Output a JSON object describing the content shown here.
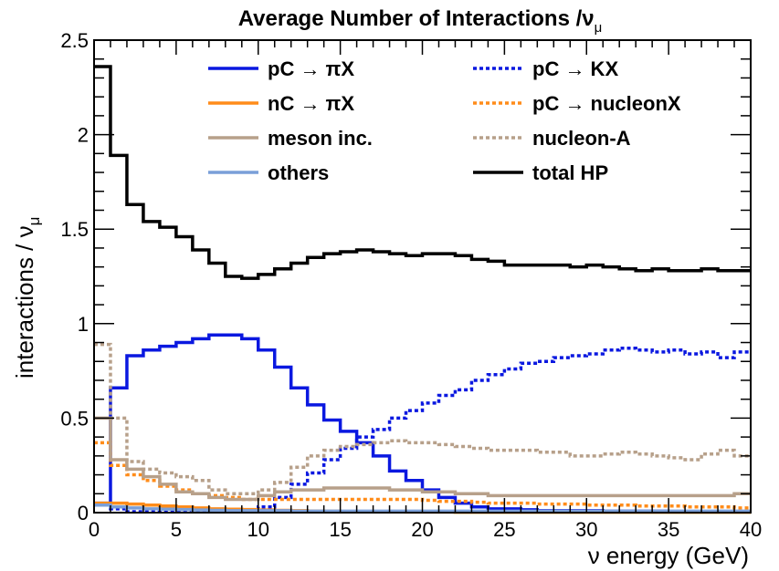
{
  "chart_data": {
    "type": "line",
    "title": "Average Number of Interactions /ν",
    "title_sub": "μ",
    "xlabel": "ν energy (GeV)",
    "ylabel": "interactions / ν",
    "ylabel_sub": "μ",
    "xlim": [
      0,
      40
    ],
    "ylim": [
      0,
      2.5
    ],
    "xticks": [
      0,
      5,
      10,
      15,
      20,
      25,
      30,
      35,
      40
    ],
    "yticks": [
      0,
      0.5,
      1,
      1.5,
      2,
      2.5
    ],
    "ytick_labels": [
      "0",
      "0.5",
      "1",
      "1.5",
      "2",
      "2.5"
    ],
    "bin_edges": [
      0,
      1,
      2,
      3,
      4,
      5,
      6,
      7,
      8,
      9,
      10,
      11,
      12,
      13,
      14,
      15,
      16,
      17,
      18,
      19,
      20,
      21,
      22,
      23,
      24,
      25,
      26,
      27,
      28,
      29,
      30,
      31,
      32,
      33,
      34,
      35,
      36,
      37,
      38,
      39,
      40
    ],
    "legend_position": "top",
    "series": [
      {
        "name": "pC → πX",
        "color": "#0a18e0",
        "style": "solid",
        "values": [
          0.05,
          0.66,
          0.83,
          0.86,
          0.88,
          0.9,
          0.92,
          0.94,
          0.94,
          0.92,
          0.86,
          0.77,
          0.66,
          0.57,
          0.49,
          0.43,
          0.37,
          0.3,
          0.22,
          0.17,
          0.12,
          0.08,
          0.05,
          0.03,
          0.02,
          0.02,
          0.015,
          0.01,
          0.01,
          0.01,
          0.01,
          0.008,
          0.008,
          0.008,
          0.008,
          0.006,
          0.006,
          0.006,
          0.005,
          0.005
        ]
      },
      {
        "name": "pC → KX",
        "color": "#0a18e0",
        "style": "dotted",
        "values": [
          0.04,
          0.02,
          0.005,
          0.005,
          0.005,
          0.005,
          0.005,
          0.005,
          0.005,
          0.01,
          0.03,
          0.08,
          0.15,
          0.21,
          0.28,
          0.34,
          0.4,
          0.44,
          0.5,
          0.54,
          0.58,
          0.62,
          0.65,
          0.7,
          0.73,
          0.76,
          0.79,
          0.8,
          0.82,
          0.83,
          0.84,
          0.86,
          0.87,
          0.86,
          0.85,
          0.86,
          0.84,
          0.85,
          0.82,
          0.85
        ]
      },
      {
        "name": "nC → πX",
        "color": "#ff8c1a",
        "style": "solid",
        "values": [
          0.05,
          0.05,
          0.045,
          0.04,
          0.035,
          0.03,
          0.025,
          0.02,
          0.018,
          0.016,
          0.014,
          0.012,
          0.01,
          0.008,
          0.007,
          0.006,
          0.005,
          0.004,
          0.004,
          0.003,
          0.003,
          0.003,
          0.002,
          0.002,
          0.002,
          0.002,
          0.002,
          0.002,
          0.002,
          0.002,
          0.002,
          0.002,
          0.002,
          0.002,
          0.002,
          0.002,
          0.002,
          0.002,
          0.002,
          0.002
        ]
      },
      {
        "name": "pC → nucleonX",
        "color": "#ff8c1a",
        "style": "dotted",
        "values": [
          0.37,
          0.25,
          0.2,
          0.17,
          0.14,
          0.12,
          0.1,
          0.09,
          0.08,
          0.07,
          0.07,
          0.07,
          0.07,
          0.07,
          0.07,
          0.07,
          0.07,
          0.07,
          0.07,
          0.07,
          0.065,
          0.06,
          0.06,
          0.055,
          0.05,
          0.05,
          0.05,
          0.045,
          0.045,
          0.045,
          0.04,
          0.04,
          0.04,
          0.035,
          0.035,
          0.035,
          0.03,
          0.03,
          0.03,
          0.025
        ]
      },
      {
        "name": "meson inc.",
        "color": "#b7a08a",
        "style": "solid",
        "values": [
          0.5,
          0.28,
          0.23,
          0.19,
          0.15,
          0.11,
          0.1,
          0.08,
          0.07,
          0.07,
          0.09,
          0.11,
          0.12,
          0.12,
          0.13,
          0.13,
          0.13,
          0.13,
          0.12,
          0.12,
          0.11,
          0.11,
          0.1,
          0.1,
          0.09,
          0.09,
          0.09,
          0.09,
          0.09,
          0.09,
          0.09,
          0.09,
          0.09,
          0.09,
          0.09,
          0.09,
          0.09,
          0.09,
          0.09,
          0.1
        ]
      },
      {
        "name": "nucleon-A",
        "color": "#b7a08a",
        "style": "dotted",
        "values": [
          0.89,
          0.5,
          0.27,
          0.23,
          0.21,
          0.19,
          0.17,
          0.12,
          0.1,
          0.1,
          0.12,
          0.16,
          0.24,
          0.3,
          0.33,
          0.35,
          0.36,
          0.37,
          0.38,
          0.37,
          0.37,
          0.36,
          0.35,
          0.34,
          0.33,
          0.33,
          0.33,
          0.32,
          0.32,
          0.3,
          0.3,
          0.31,
          0.32,
          0.31,
          0.3,
          0.29,
          0.28,
          0.31,
          0.33,
          0.3
        ]
      },
      {
        "name": "others",
        "color": "#7a9fd8",
        "style": "solid",
        "values": [
          0.04,
          0.03,
          0.025,
          0.02,
          0.018,
          0.016,
          0.014,
          0.012,
          0.01,
          0.01,
          0.01,
          0.01,
          0.008,
          0.008,
          0.008,
          0.008,
          0.008,
          0.008,
          0.008,
          0.008,
          0.008,
          0.008,
          0.008,
          0.008,
          0.008,
          0.008,
          0.008,
          0.008,
          0.008,
          0.008,
          0.008,
          0.008,
          0.008,
          0.008,
          0.008,
          0.008,
          0.008,
          0.008,
          0.008,
          0.008
        ]
      },
      {
        "name": "total HP",
        "color": "#000000",
        "style": "solid",
        "values": [
          2.36,
          1.89,
          1.63,
          1.54,
          1.51,
          1.46,
          1.39,
          1.32,
          1.25,
          1.24,
          1.26,
          1.29,
          1.32,
          1.35,
          1.37,
          1.38,
          1.39,
          1.38,
          1.37,
          1.36,
          1.37,
          1.37,
          1.36,
          1.34,
          1.33,
          1.31,
          1.31,
          1.31,
          1.31,
          1.3,
          1.31,
          1.3,
          1.29,
          1.28,
          1.29,
          1.28,
          1.28,
          1.29,
          1.28,
          1.28
        ]
      }
    ],
    "legend_layout": [
      [
        "pC → πX",
        "pC → KX"
      ],
      [
        "nC → πX",
        "pC → nucleonX"
      ],
      [
        "meson inc.",
        "nucleon-A"
      ],
      [
        "others",
        "total HP"
      ]
    ]
  }
}
